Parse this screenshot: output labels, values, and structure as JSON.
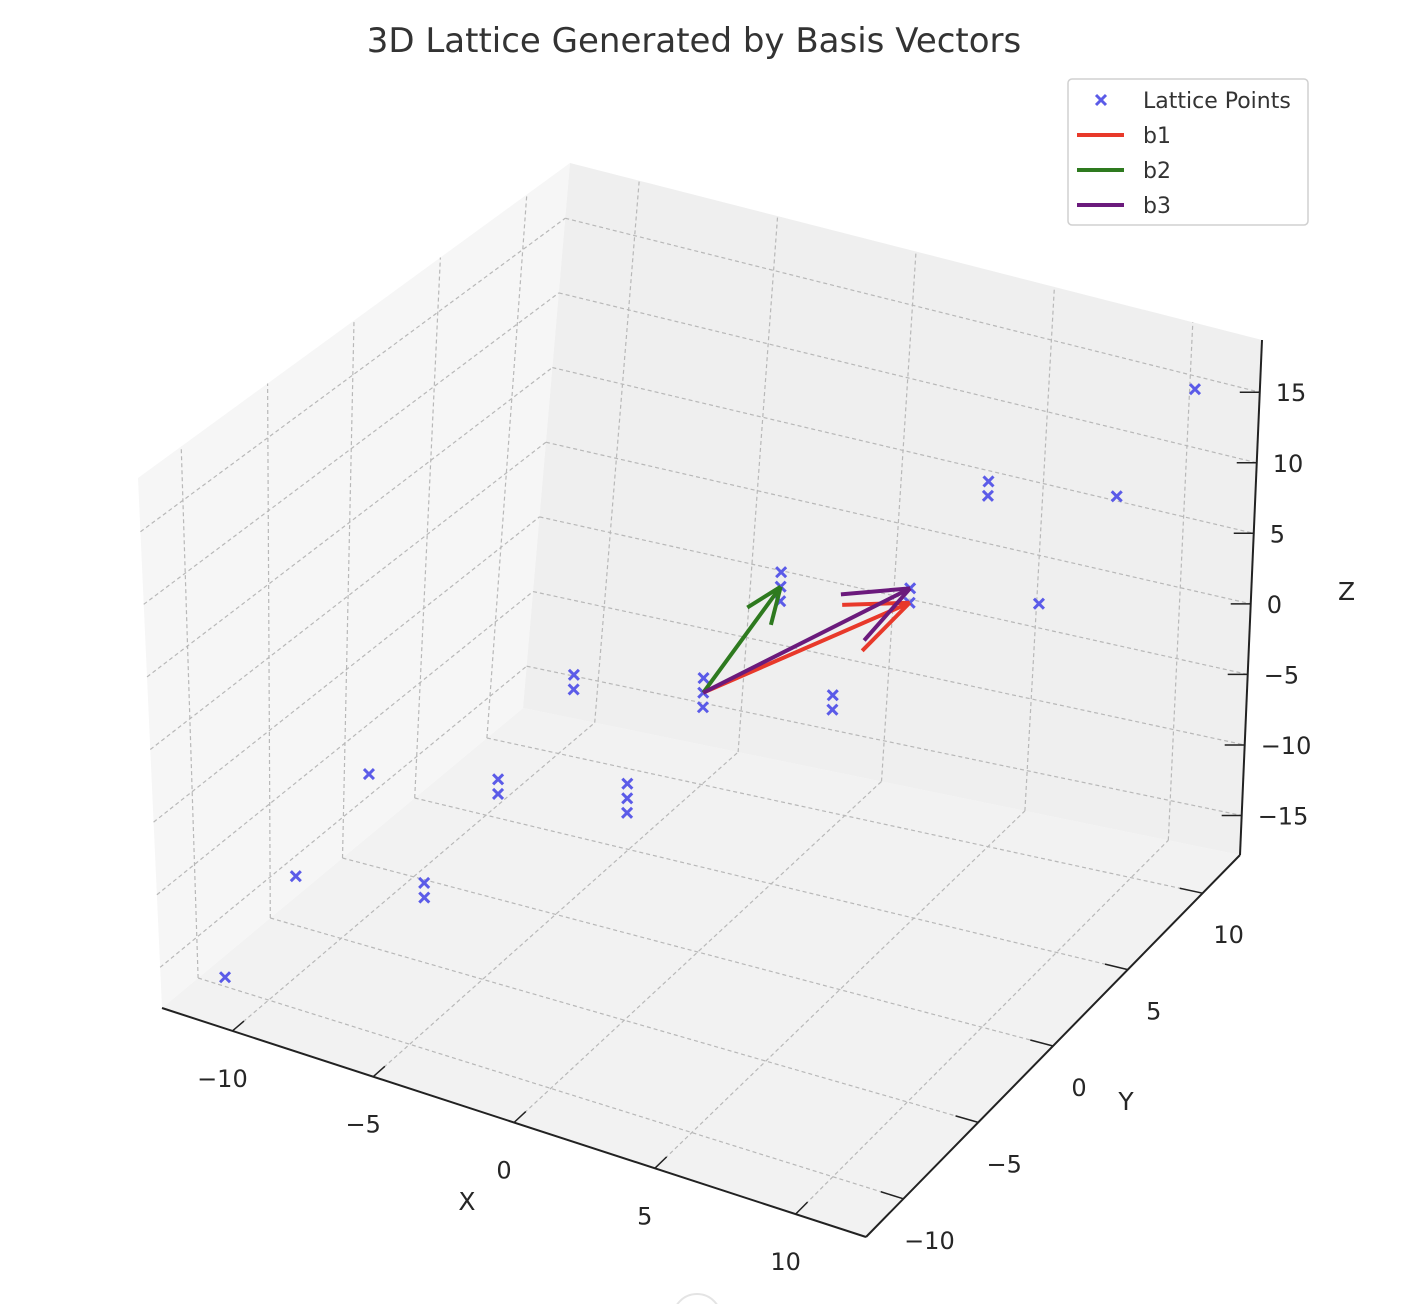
{
  "chart_data": {
    "type": "scatter",
    "projection": "3d",
    "title": "3D Lattice Generated by Basis Vectors",
    "xlabel": "X",
    "ylabel": "Y",
    "zlabel": "Z",
    "xlim": [
      -12.5,
      12.5
    ],
    "ylim": [
      -12.5,
      12.5
    ],
    "zlim": [
      -17.8,
      18.7
    ],
    "xticks": [
      -10,
      -5,
      0,
      5,
      10
    ],
    "yticks": [
      -10,
      -5,
      0,
      5,
      10
    ],
    "zticks": [
      -15,
      -10,
      -5,
      0,
      5,
      10,
      15
    ],
    "grid": true,
    "legend_position": "top-right",
    "series": [
      {
        "name": "Lattice Points",
        "kind": "scatter",
        "marker": "x",
        "color": "#5b5be8",
        "points": [
          [
            -11,
            -11,
            -16
          ],
          [
            -6,
            -7,
            -10
          ],
          [
            -1,
            -3,
            -4
          ],
          [
            -10,
            -8,
            -11
          ],
          [
            -5,
            -4,
            -5
          ],
          [
            0,
            0,
            1
          ],
          [
            -9,
            -5,
            -6
          ],
          [
            -4,
            -1,
            0
          ],
          [
            1,
            3,
            6
          ],
          [
            -6,
            -7,
            -11
          ],
          [
            -1,
            -3,
            -5
          ],
          [
            4,
            1,
            1
          ],
          [
            -5,
            -4,
            -6
          ],
          [
            0,
            0,
            0
          ],
          [
            5,
            4,
            6
          ],
          [
            -4,
            -1,
            -1
          ],
          [
            1,
            3,
            5
          ],
          [
            6,
            7,
            11
          ],
          [
            -1,
            -3,
            -6
          ],
          [
            4,
            1,
            0
          ],
          [
            9,
            5,
            6
          ],
          [
            0,
            0,
            -1
          ],
          [
            5,
            4,
            5
          ],
          [
            10,
            8,
            11
          ],
          [
            1,
            3,
            4
          ],
          [
            6,
            7,
            10
          ],
          [
            11,
            11,
            16
          ]
        ]
      },
      {
        "name": "b1",
        "kind": "vector",
        "color": "#e8392a",
        "origin": [
          0,
          0,
          0
        ],
        "vector": [
          5,
          4,
          5
        ]
      },
      {
        "name": "b2",
        "kind": "vector",
        "color": "#2e7a1f",
        "origin": [
          0,
          0,
          0
        ],
        "vector": [
          1,
          3,
          5
        ]
      },
      {
        "name": "b3",
        "kind": "vector",
        "color": "#6b1a7c",
        "origin": [
          0,
          0,
          0
        ],
        "vector": [
          5,
          4,
          6
        ]
      }
    ]
  }
}
